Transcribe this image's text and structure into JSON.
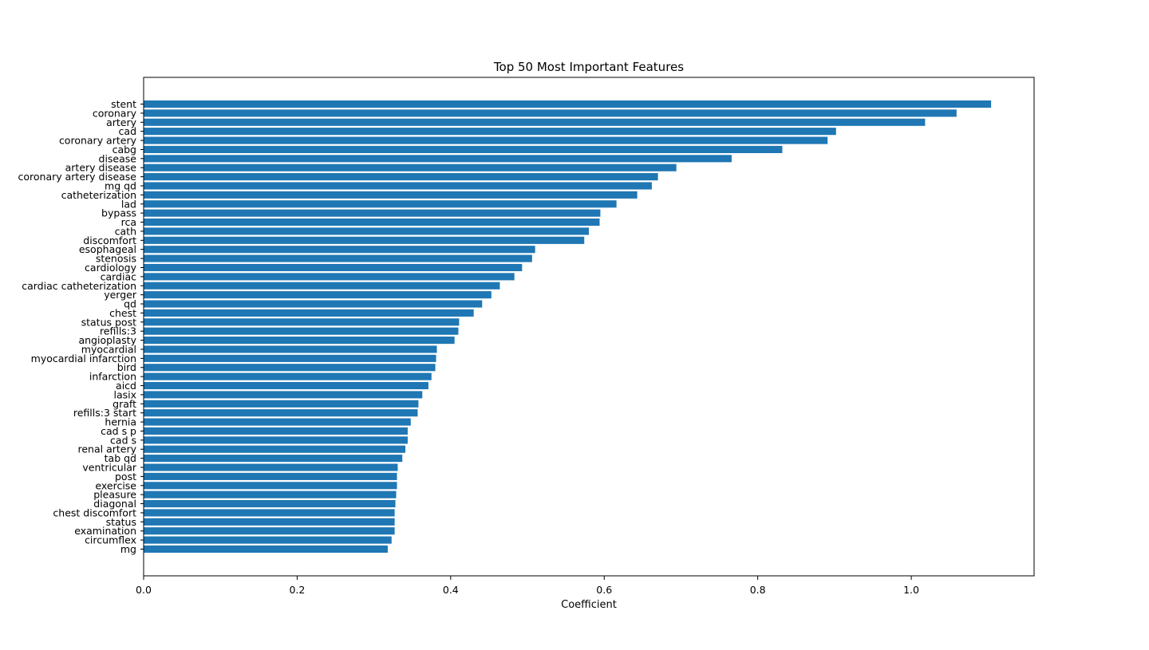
{
  "chart_data": {
    "type": "bar",
    "orientation": "horizontal",
    "title": "Top 50 Most Important Features",
    "xlabel": "Coefficient",
    "ylabel": "",
    "xlim": [
      0,
      1.16
    ],
    "xticks": [
      0.0,
      0.2,
      0.4,
      0.6,
      0.8,
      1.0
    ],
    "xtick_labels": [
      "0.0",
      "0.2",
      "0.4",
      "0.6",
      "0.8",
      "1.0"
    ],
    "grid": false,
    "legend": "none",
    "bar_color": "#1f77b4",
    "categories": [
      "stent",
      "coronary",
      "artery",
      "cad",
      "coronary artery",
      "cabg",
      "disease",
      "artery disease",
      "coronary artery disease",
      "mg qd",
      "catheterization",
      "lad",
      "bypass",
      "rca",
      "cath",
      "discomfort",
      "esophageal",
      "stenosis",
      "cardiology",
      "cardiac",
      "cardiac catheterization",
      "yerger",
      "qd",
      "chest",
      "status post",
      "refills:3",
      "angioplasty",
      "myocardial",
      "myocardial infarction",
      "bird",
      "infarction",
      "aicd",
      "lasix",
      "graft",
      "refills:3 start",
      "hernia",
      "cad s p",
      "cad s",
      "renal artery",
      "tab qd",
      "ventricular",
      "post",
      "exercise",
      "pleasure",
      "diagonal",
      "chest discomfort",
      "status",
      "examination",
      "circumflex",
      "mg"
    ],
    "values": [
      1.104,
      1.059,
      1.018,
      0.902,
      0.891,
      0.832,
      0.766,
      0.694,
      0.67,
      0.662,
      0.643,
      0.616,
      0.595,
      0.594,
      0.58,
      0.574,
      0.51,
      0.506,
      0.493,
      0.483,
      0.464,
      0.453,
      0.441,
      0.43,
      0.411,
      0.41,
      0.405,
      0.382,
      0.381,
      0.38,
      0.375,
      0.371,
      0.363,
      0.358,
      0.357,
      0.348,
      0.344,
      0.344,
      0.341,
      0.337,
      0.331,
      0.33,
      0.33,
      0.329,
      0.328,
      0.327,
      0.327,
      0.327,
      0.323,
      0.318
    ]
  }
}
